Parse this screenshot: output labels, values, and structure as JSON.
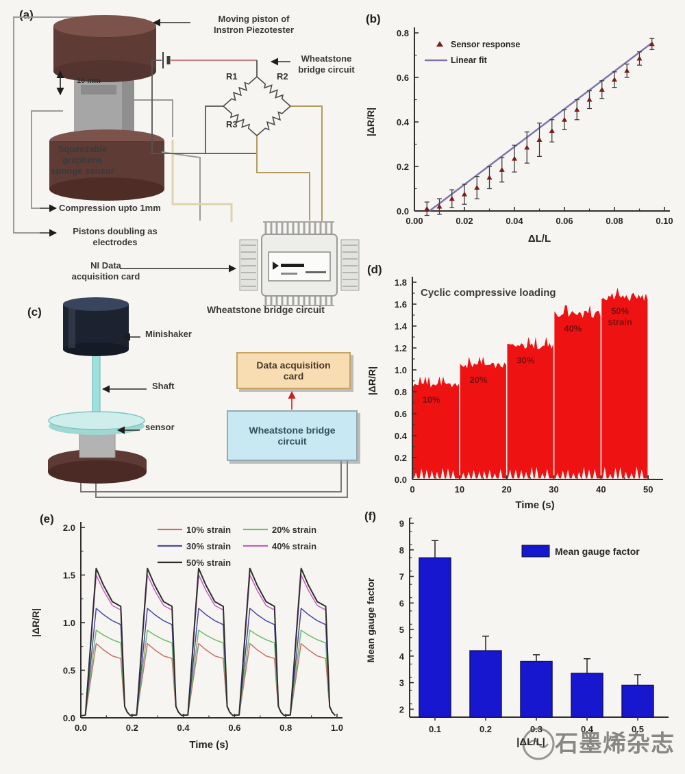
{
  "panels": {
    "a": {
      "tag": "(a)",
      "labels": {
        "moving_piston": "Moving piston of\nInstron Piezotester",
        "wheatstone": "Wheatstone\nbridge circuit",
        "r1": "R1",
        "r2": "R2",
        "r3": "R3",
        "size": "10 mm",
        "sponge": "Squeezable\ngraphene\nsponge sensor",
        "compression": "Compression upto 1mm",
        "pistons_electrodes": "Pistons doubling as\nelectrodes",
        "ni_card": "NI Data\nacquisition card",
        "chip_caption": "Wheatstone bridge circuit"
      }
    },
    "b": {
      "tag": "(b)"
    },
    "c": {
      "tag": "(c)",
      "labels": {
        "minishaker": "Minishaker",
        "shaft": "Shaft",
        "sensor": "sensor",
        "daq": "Data acquisition\ncard",
        "bridge": "Wheatstone bridge\ncircuit"
      }
    },
    "d": {
      "tag": "(d)"
    },
    "e": {
      "tag": "(e)"
    },
    "f": {
      "tag": "(f)"
    }
  },
  "watermark": {
    "text": "石墨烯杂志"
  },
  "chart_data": [
    {
      "id": "b",
      "type": "scatter",
      "xlabel": "ΔL/L",
      "ylabel": "|ΔR/R|",
      "xlim": [
        0,
        0.1
      ],
      "ylim": [
        0,
        0.8
      ],
      "xticks": [
        0,
        0.02,
        0.04,
        0.06,
        0.08,
        0.1
      ],
      "xtick_labels": [
        "0.00",
        "0.02",
        "0.04",
        "0.06",
        "0.08",
        "0.10"
      ],
      "yticks": [
        0,
        0.2,
        0.4,
        0.6,
        0.8
      ],
      "ytick_labels": [
        "0.0",
        "0.2",
        "0.4",
        "0.6",
        "0.8"
      ],
      "legend": [
        "Sensor response",
        "Linear fit"
      ],
      "marker_color": "#7a1d1d",
      "line_color": "#7d74ae",
      "errbar_color": "#3c3c3c",
      "points": {
        "x": [
          0.005,
          0.01,
          0.015,
          0.02,
          0.025,
          0.03,
          0.035,
          0.04,
          0.045,
          0.05,
          0.055,
          0.06,
          0.065,
          0.07,
          0.075,
          0.08,
          0.085,
          0.09,
          0.095
        ],
        "y": [
          0.01,
          0.02,
          0.055,
          0.075,
          0.105,
          0.15,
          0.185,
          0.235,
          0.285,
          0.32,
          0.36,
          0.41,
          0.455,
          0.5,
          0.545,
          0.59,
          0.63,
          0.685,
          0.75
        ],
        "err": [
          0.03,
          0.035,
          0.04,
          0.045,
          0.05,
          0.05,
          0.055,
          0.06,
          0.07,
          0.075,
          0.05,
          0.045,
          0.045,
          0.04,
          0.04,
          0.035,
          0.03,
          0.03,
          0.025
        ]
      },
      "fit": {
        "x1": 0.006,
        "y1": 0.0,
        "x2": 0.095,
        "y2": 0.755
      }
    },
    {
      "id": "d",
      "type": "area",
      "title": "Cyclic compressive loading",
      "xlabel": "Time (s)",
      "ylabel": "|ΔR/R|",
      "xlim": [
        0,
        52
      ],
      "ylim": [
        0,
        1.8
      ],
      "xticks": [
        0,
        10,
        20,
        30,
        40,
        50
      ],
      "xtick_labels": [
        "0",
        "10",
        "20",
        "30",
        "40",
        "50"
      ],
      "yticks": [
        0,
        0.2,
        0.4,
        0.6,
        0.8,
        1.0,
        1.2,
        1.4,
        1.6,
        1.8
      ],
      "ytick_labels": [
        "0.0",
        "0.2",
        "0.4",
        "0.6",
        "0.8",
        "1.0",
        "1.2",
        "1.4",
        "1.6",
        "1.8"
      ],
      "color": "#ee1212",
      "label_color": "#7c0e0e",
      "steps": [
        {
          "t0": 0,
          "t1": 10,
          "amplitude": 0.87,
          "label": "10%"
        },
        {
          "t0": 10,
          "t1": 20,
          "amplitude": 1.05,
          "label": "20%"
        },
        {
          "t0": 20,
          "t1": 30,
          "amplitude": 1.23,
          "label": "30%"
        },
        {
          "t0": 30,
          "t1": 40,
          "amplitude": 1.52,
          "label": "40%"
        },
        {
          "t0": 40,
          "t1": 50,
          "amplitude": 1.68,
          "label": "50% strain"
        }
      ]
    },
    {
      "id": "e",
      "type": "line",
      "xlabel": "Time (s)",
      "ylabel": "|ΔR/R|",
      "xlim": [
        0,
        1.0
      ],
      "ylim": [
        0,
        2.0
      ],
      "xticks": [
        0,
        0.2,
        0.4,
        0.6,
        0.8,
        1.0
      ],
      "xtick_labels": [
        "0.0",
        "0.2",
        "0.4",
        "0.6",
        "0.8",
        "1.0"
      ],
      "yticks": [
        0,
        0.5,
        1.0,
        1.5,
        2.0
      ],
      "ytick_labels": [
        "0.0",
        "0.5",
        "1.0",
        "1.5",
        "2.0"
      ],
      "cycles": 5,
      "period": 0.2,
      "series": [
        {
          "name": "10% strain",
          "color": "#c4736b",
          "peak": 0.78,
          "plateau": 0.65
        },
        {
          "name": "20% strain",
          "color": "#6cbd6c",
          "peak": 0.92,
          "plateau": 0.82
        },
        {
          "name": "30% strain",
          "color": "#4747a8",
          "peak": 1.15,
          "plateau": 1.02
        },
        {
          "name": "40% strain",
          "color": "#c45fc4",
          "peak": 1.5,
          "plateau": 1.18
        },
        {
          "name": "50% strain",
          "color": "#2e2e2e",
          "peak": 1.57,
          "plateau": 1.22
        }
      ]
    },
    {
      "id": "f",
      "type": "bar",
      "xlabel": "|ΔL/L|",
      "ylabel": "Mean gauge factor",
      "legend": [
        "Mean gauge factor"
      ],
      "categories": [
        "0.1",
        "0.2",
        "0.3",
        "0.4",
        "0.5"
      ],
      "values": [
        7.7,
        4.2,
        3.8,
        3.35,
        2.9
      ],
      "errors": [
        0.65,
        0.55,
        0.25,
        0.55,
        0.4
      ],
      "ylim": [
        1.7,
        9
      ],
      "yticks": [
        2,
        3,
        4,
        5,
        6,
        7,
        8,
        9
      ],
      "ytick_labels": [
        "2",
        "3",
        "4",
        "5",
        "6",
        "7",
        "8",
        "9"
      ],
      "bar_color": "#1717d0",
      "bar_edge": "#10106e"
    }
  ]
}
